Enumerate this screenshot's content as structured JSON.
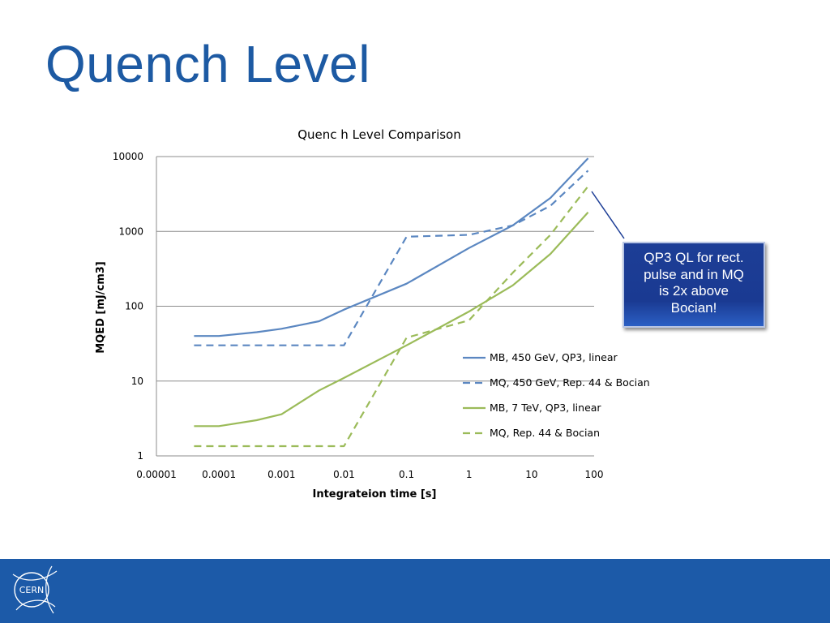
{
  "slide": {
    "title": "Quench Level"
  },
  "callout": {
    "lines": [
      "QP3 QL for rect.",
      "pulse and in MQ",
      "is 2x above",
      "Bocian!"
    ]
  },
  "footer": {
    "logo_text": "CERN",
    "background": "#1c5aa8"
  },
  "chart_data": {
    "type": "line",
    "title": "Quenc h Level Comparison",
    "xlabel": "Integrateion time [s]",
    "ylabel": "MQED [mJ/cm3]",
    "xscale": "log",
    "yscale": "log",
    "xlim": [
      1e-05,
      100
    ],
    "ylim": [
      1,
      10000
    ],
    "x_ticks": [
      "0.00001",
      "0.0001",
      "0.001",
      "0.01",
      "0.1",
      "1",
      "10",
      "100"
    ],
    "y_ticks": [
      "1",
      "10",
      "100",
      "1000",
      "10000"
    ],
    "grid": "horizontal",
    "legend_position": "right",
    "series": [
      {
        "name": "MB, 450 GeV, QP3, linear",
        "color": "#5b87c1",
        "dash": false,
        "points": [
          [
            4e-05,
            40
          ],
          [
            0.0001,
            40
          ],
          [
            0.0004,
            45
          ],
          [
            0.001,
            50
          ],
          [
            0.004,
            63
          ],
          [
            0.01,
            90
          ],
          [
            0.1,
            200
          ],
          [
            1,
            600
          ],
          [
            5,
            1200
          ],
          [
            20,
            2800
          ],
          [
            80,
            9500
          ]
        ]
      },
      {
        "name": "MQ, 450 GeV, Rep. 44 & Bocian",
        "color": "#5b87c1",
        "dash": true,
        "points": [
          [
            4e-05,
            30
          ],
          [
            0.01,
            30
          ],
          [
            0.1,
            850
          ],
          [
            1,
            900
          ],
          [
            5,
            1200
          ],
          [
            20,
            2200
          ],
          [
            80,
            6500
          ]
        ]
      },
      {
        "name": "MB, 7 TeV, QP3, linear",
        "color": "#9bbb59",
        "dash": false,
        "points": [
          [
            4e-05,
            2.5
          ],
          [
            0.0001,
            2.5
          ],
          [
            0.0004,
            3
          ],
          [
            0.001,
            3.6
          ],
          [
            0.004,
            7.5
          ],
          [
            0.01,
            11
          ],
          [
            0.1,
            30
          ],
          [
            1,
            85
          ],
          [
            5,
            190
          ],
          [
            20,
            500
          ],
          [
            80,
            1800
          ]
        ]
      },
      {
        "name": "MQ, Rep. 44 & Bocian",
        "color": "#9bbb59",
        "dash": true,
        "points": [
          [
            4e-05,
            1.35
          ],
          [
            0.01,
            1.35
          ],
          [
            0.1,
            38
          ],
          [
            1,
            65
          ],
          [
            5,
            280
          ],
          [
            20,
            900
          ],
          [
            80,
            4000
          ]
        ]
      }
    ]
  }
}
